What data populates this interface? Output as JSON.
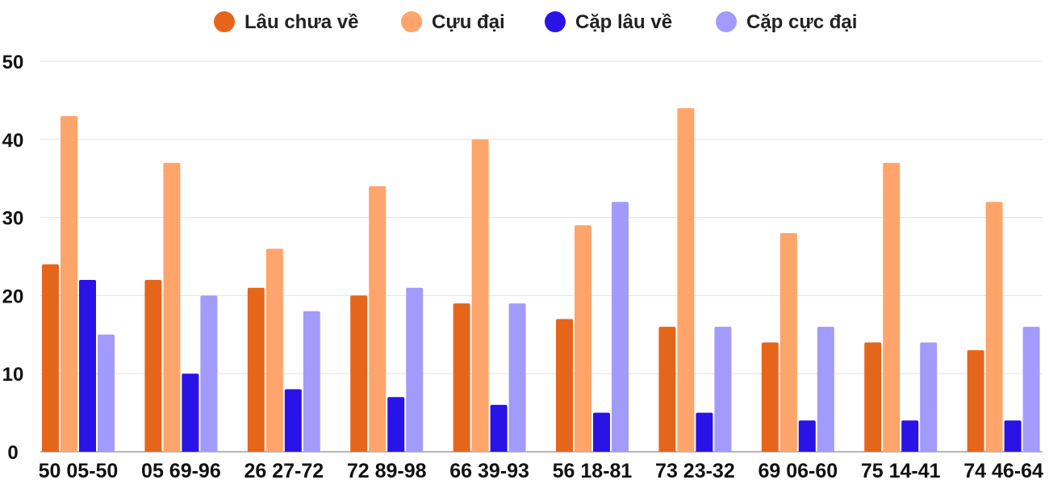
{
  "chart_data": {
    "type": "bar",
    "title": "",
    "xlabel": "",
    "ylabel": "",
    "ylim": [
      0,
      50
    ],
    "yticks": [
      0,
      10,
      20,
      30,
      40,
      50
    ],
    "grid": true,
    "legend_position": "top-center",
    "categories": [
      "50 05-50",
      "05 69-96",
      "26 27-72",
      "72 89-98",
      "66 39-93",
      "56 18-81",
      "73 23-32",
      "69 06-60",
      "75 14-41",
      "74 46-64"
    ],
    "series": [
      {
        "name": "Lâu chưa về",
        "color": "#e5661a",
        "values": [
          24,
          22,
          21,
          20,
          19,
          17,
          16,
          14,
          14,
          13
        ]
      },
      {
        "name": "Cựu đại",
        "color": "#ffa46b",
        "values": [
          43,
          37,
          26,
          34,
          40,
          29,
          44,
          28,
          37,
          32
        ]
      },
      {
        "name": "Cặp lâu về",
        "color": "#2a13e6",
        "values": [
          22,
          10,
          8,
          7,
          6,
          5,
          5,
          4,
          4,
          4
        ]
      },
      {
        "name": "Cặp cực đại",
        "color": "#a39bfb",
        "values": [
          15,
          20,
          18,
          21,
          19,
          32,
          16,
          16,
          14,
          16
        ]
      }
    ]
  }
}
